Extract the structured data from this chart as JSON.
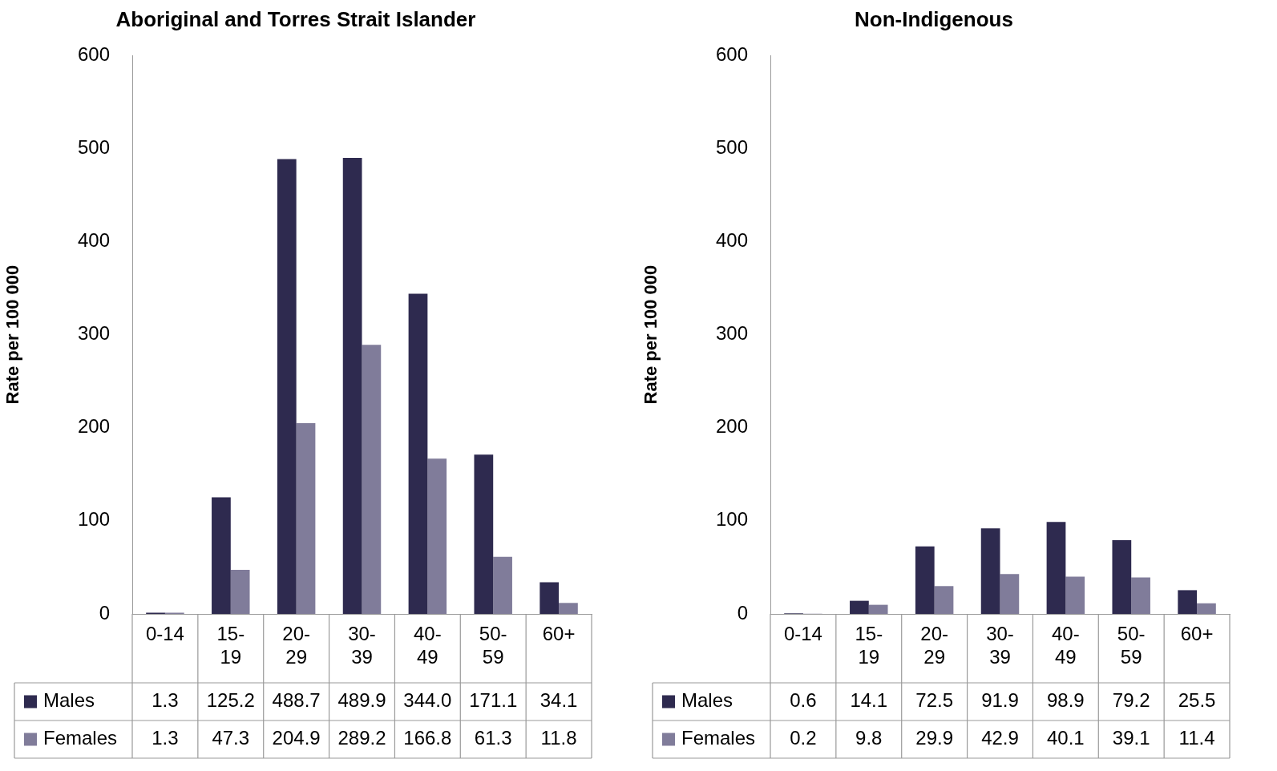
{
  "chart_data": [
    {
      "type": "bar",
      "title": "Aboriginal and Torres Strait Islander",
      "ylabel": "Rate per 100 000",
      "categories": [
        "0-14",
        "15-19",
        "20-29",
        "30-39",
        "40-49",
        "50-59",
        "60+"
      ],
      "series": [
        {
          "name": "Males",
          "color": "#2e2a4f",
          "values": [
            1.3,
            125.2,
            488.7,
            489.9,
            344.0,
            171.1,
            34.1
          ],
          "value_labels": [
            "1.3",
            "125.2",
            "488.7",
            "489.9",
            "344.0",
            "171.1",
            "34.1"
          ]
        },
        {
          "name": "Females",
          "color": "#807c9a",
          "values": [
            1.3,
            47.3,
            204.9,
            289.2,
            166.8,
            61.3,
            11.8
          ],
          "value_labels": [
            "1.3",
            "47.3",
            "204.9",
            "289.2",
            "166.8",
            "61.3",
            "11.8"
          ]
        }
      ],
      "ylim": [
        0,
        600
      ],
      "yticks": [
        0,
        100,
        200,
        300,
        400,
        500,
        600
      ],
      "legend": "bottom"
    },
    {
      "type": "bar",
      "title": "Non-Indigenous",
      "ylabel": "Rate per 100 000",
      "categories": [
        "0-14",
        "15-19",
        "20-29",
        "30-39",
        "40-49",
        "50-59",
        "60+"
      ],
      "series": [
        {
          "name": "Males",
          "color": "#2e2a4f",
          "values": [
            0.6,
            14.1,
            72.5,
            91.9,
            98.9,
            79.2,
            25.5
          ]
        },
        {
          "name": "Females",
          "color": "#807c9a",
          "values": [
            0.2,
            9.8,
            29.9,
            42.9,
            40.1,
            39.1,
            11.4
          ]
        }
      ],
      "ylim": [
        0,
        600
      ],
      "yticks": [
        0,
        100,
        200,
        300,
        400,
        500,
        600
      ],
      "data_labels": true,
      "legend": "bottom"
    }
  ]
}
